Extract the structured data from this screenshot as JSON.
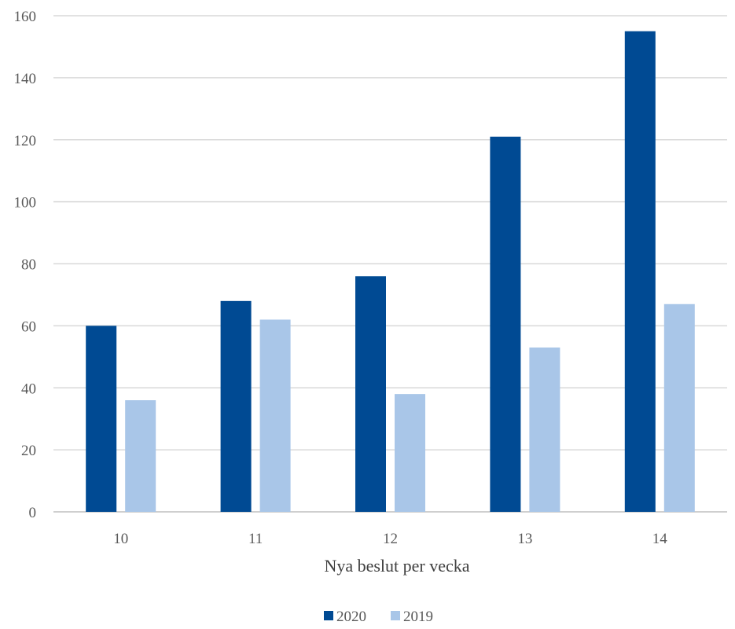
{
  "chart_data": {
    "type": "bar",
    "title": "",
    "xlabel": "Nya beslut per vecka",
    "ylabel": "",
    "categories": [
      "10",
      "11",
      "12",
      "13",
      "14"
    ],
    "series": [
      {
        "name": "2020",
        "color": "#004A93",
        "values": [
          60,
          68,
          76,
          121,
          155
        ]
      },
      {
        "name": "2019",
        "color": "#A9C6E8",
        "values": [
          36,
          62,
          38,
          53,
          67
        ]
      }
    ],
    "ylim": [
      0,
      160
    ],
    "yticks": [
      "0",
      "20",
      "40",
      "60",
      "80",
      "100",
      "120",
      "140",
      "160"
    ],
    "grid": true,
    "gridColor": "#D9D9D9",
    "legend_position": "bottom"
  }
}
